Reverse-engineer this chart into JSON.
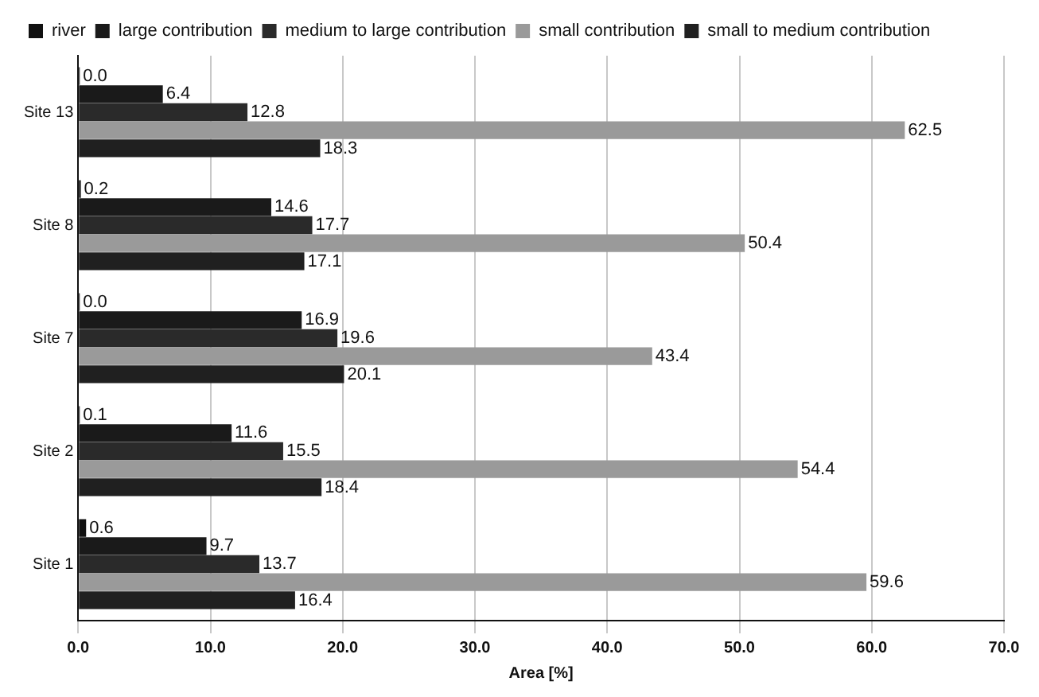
{
  "chart_data": {
    "type": "bar",
    "orientation": "horizontal",
    "xlabel": "Area [%]",
    "categories": [
      "Site 13",
      "Site 8",
      "Site 7",
      "Site 2",
      "Site 1"
    ],
    "series": [
      {
        "name": "river",
        "color": "#111111",
        "values": [
          0,
          0.2,
          0,
          0.1,
          0.6
        ],
        "value_labels": [
          "0.0",
          "0.2",
          "0.0",
          "0.1",
          "0.6"
        ]
      },
      {
        "name": "large contribution",
        "color": "#1a1a1a",
        "values": [
          6.4,
          14.6,
          16.9,
          11.6,
          9.7
        ],
        "value_labels": [
          "6.4",
          "14.6",
          "16.9",
          "11.6",
          "9.7"
        ]
      },
      {
        "name": "medium to large contribution",
        "color": "#2a2a2a",
        "values": [
          12.8,
          17.7,
          19.6,
          15.5,
          13.7
        ],
        "value_labels": [
          "12.8",
          "17.7",
          "19.6",
          "15.5",
          "13.7"
        ]
      },
      {
        "name": "small contribution",
        "color": "#9a9a9a",
        "values": [
          62.5,
          50.4,
          43.4,
          54.4,
          59.6
        ],
        "value_labels": [
          "62.5",
          "50.4",
          "43.4",
          "54.4",
          "59.6"
        ]
      },
      {
        "name": "small to medium contribution",
        "color": "#202020",
        "values": [
          18.3,
          17.1,
          20.1,
          18.4,
          16.4
        ],
        "value_labels": [
          "18.3",
          "17.1",
          "20.1",
          "18.4",
          "16.4"
        ]
      }
    ],
    "xlim": [
      0,
      70
    ],
    "xticks": [
      {
        "value": 0,
        "label": "0.0"
      },
      {
        "value": 10,
        "label": "10.0"
      },
      {
        "value": 20,
        "label": "20.0"
      },
      {
        "value": 30,
        "label": "30.0"
      },
      {
        "value": 40,
        "label": "40.0"
      },
      {
        "value": 50,
        "label": "50.0"
      },
      {
        "value": 60,
        "label": "60.0"
      },
      {
        "value": 70,
        "label": "70.0"
      }
    ],
    "grid": "x",
    "legend": "top"
  }
}
